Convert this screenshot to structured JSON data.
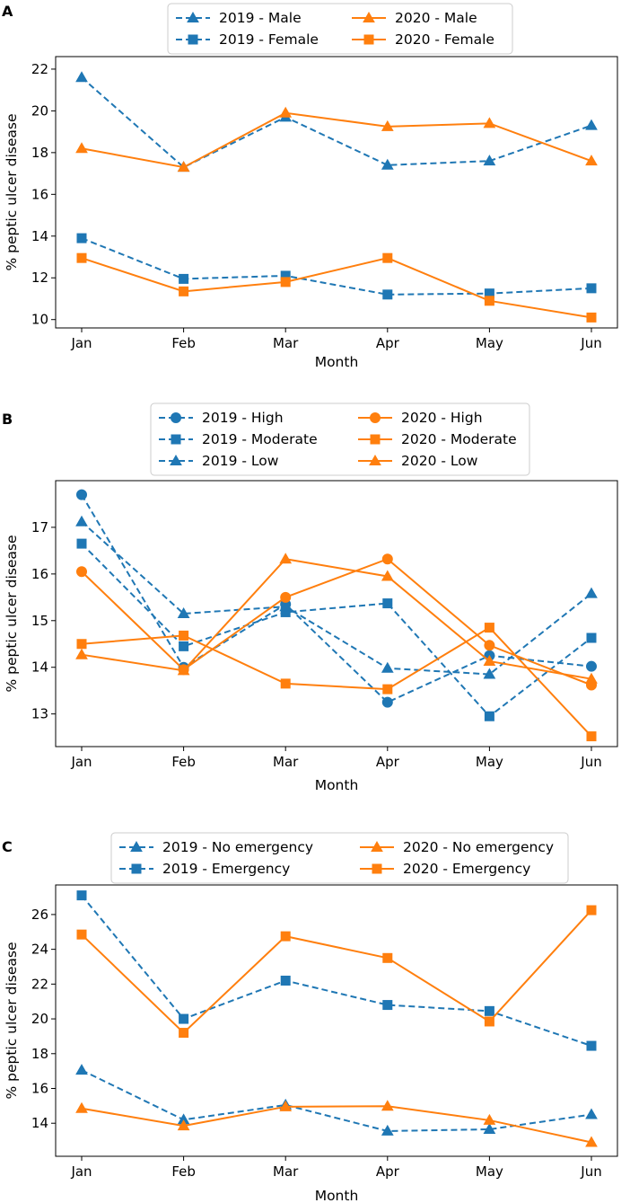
{
  "colors": {
    "y2019": "#1f77b4",
    "y2020": "#ff7f0e"
  },
  "chart_data": [
    {
      "panel": "A",
      "type": "line",
      "categories": [
        "Jan",
        "Feb",
        "Mar",
        "Apr",
        "May",
        "Jun"
      ],
      "xlabel": "Month",
      "ylabel": "% peptic ulcer disease",
      "ylim": [
        9.6,
        22.6
      ],
      "yticks": [
        10,
        12,
        14,
        16,
        18,
        20,
        22
      ],
      "legend_ncol": 2,
      "series": [
        {
          "name": "2019 - Male",
          "year": "2019",
          "marker": "triangle",
          "values": [
            21.6,
            17.3,
            19.7,
            17.4,
            17.6,
            19.3
          ]
        },
        {
          "name": "2019 - Female",
          "year": "2019",
          "marker": "square",
          "values": [
            13.9,
            11.95,
            12.1,
            11.2,
            11.25,
            11.5
          ]
        },
        {
          "name": "2020 - Male",
          "year": "2020",
          "marker": "triangle",
          "values": [
            18.2,
            17.3,
            19.9,
            19.25,
            19.4,
            17.6
          ]
        },
        {
          "name": "2020 - Female",
          "year": "2020",
          "marker": "square",
          "values": [
            12.95,
            11.35,
            11.8,
            12.95,
            10.9,
            10.1
          ]
        }
      ]
    },
    {
      "panel": "B",
      "type": "line",
      "categories": [
        "Jan",
        "Feb",
        "Mar",
        "Apr",
        "May",
        "Jun"
      ],
      "xlabel": "Month",
      "ylabel": "% peptic ulcer disease",
      "ylim": [
        12.3,
        18.0
      ],
      "yticks": [
        13,
        14,
        15,
        16,
        17
      ],
      "legend_ncol": 2,
      "series": [
        {
          "name": "2019 - High",
          "year": "2019",
          "marker": "circle",
          "values": [
            17.7,
            14.0,
            15.35,
            13.25,
            14.25,
            14.02
          ]
        },
        {
          "name": "2019 - Moderate",
          "year": "2019",
          "marker": "square",
          "values": [
            16.65,
            14.45,
            15.18,
            15.37,
            12.95,
            14.63
          ]
        },
        {
          "name": "2019 - Low",
          "year": "2019",
          "marker": "triangle",
          "values": [
            17.12,
            15.15,
            15.3,
            13.98,
            13.85,
            15.58
          ]
        },
        {
          "name": "2020 - High",
          "year": "2020",
          "marker": "circle",
          "values": [
            16.05,
            13.95,
            15.5,
            16.32,
            14.47,
            13.62
          ]
        },
        {
          "name": "2020 - Moderate",
          "year": "2020",
          "marker": "square",
          "values": [
            14.5,
            14.68,
            13.65,
            13.53,
            14.85,
            12.52
          ]
        },
        {
          "name": "2020 - Low",
          "year": "2020",
          "marker": "triangle",
          "values": [
            14.27,
            13.93,
            16.32,
            15.95,
            14.13,
            13.75
          ]
        }
      ]
    },
    {
      "panel": "C",
      "type": "line",
      "categories": [
        "Jan",
        "Feb",
        "Mar",
        "Apr",
        "May",
        "Jun"
      ],
      "xlabel": "Month",
      "ylabel": "% peptic ulcer disease",
      "ylim": [
        12.1,
        27.7
      ],
      "yticks": [
        14,
        16,
        18,
        20,
        22,
        24,
        26
      ],
      "legend_ncol": 2,
      "series": [
        {
          "name": "2019 - No emergency",
          "year": "2019",
          "marker": "triangle",
          "values": [
            17.05,
            14.2,
            15.05,
            13.55,
            13.65,
            14.5
          ]
        },
        {
          "name": "2019 - Emergency",
          "year": "2019",
          "marker": "square",
          "values": [
            27.1,
            20.0,
            22.2,
            20.8,
            20.45,
            18.45
          ]
        },
        {
          "name": "2020 - No emergency",
          "year": "2020",
          "marker": "triangle",
          "values": [
            14.85,
            13.85,
            14.95,
            14.98,
            14.17,
            12.9
          ]
        },
        {
          "name": "2020 - Emergency",
          "year": "2020",
          "marker": "square",
          "values": [
            24.85,
            19.2,
            24.75,
            23.5,
            19.85,
            26.25
          ]
        }
      ]
    }
  ]
}
